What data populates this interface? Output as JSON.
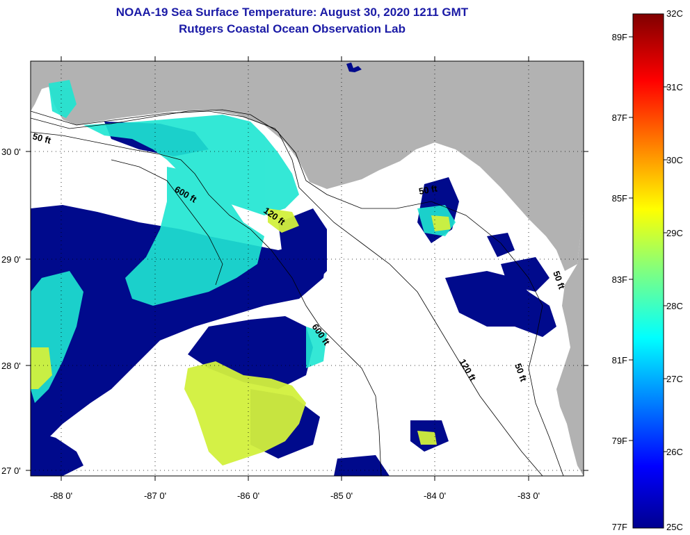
{
  "title": "NOAA-19 Sea Surface Temperature:  August 30, 2020 1211 GMT",
  "subtitle": "Rutgers Coastal Ocean Observation Lab",
  "x_ticks": [
    "-88 0'",
    "-87 0'",
    "-86 0'",
    "-85 0'",
    "-84 0'",
    "-83 0'"
  ],
  "y_ticks": [
    "30 0'",
    "29 0'",
    "28 0'",
    "27 0'"
  ],
  "contour_labels": [
    "50 ft",
    "600 ft",
    "120 ft",
    "50 ft",
    "600 ft",
    "120 ft",
    "50 ft",
    "50 ft"
  ],
  "colorbar": {
    "fahrenheit": [
      "89F",
      "87F",
      "85F",
      "83F",
      "81F",
      "79F",
      "77F"
    ],
    "celsius": [
      "32C",
      "31C",
      "30C",
      "29C",
      "28C",
      "27C",
      "26C",
      "25C"
    ]
  },
  "colors": {
    "land": "#b2b2b2",
    "ocean_nodata": "#ffffff",
    "title": "#1a1aa6",
    "sst_cool": "#000a8c",
    "sst_mid": "#1ee6d2",
    "sst_warm": "#d2f03c"
  }
}
